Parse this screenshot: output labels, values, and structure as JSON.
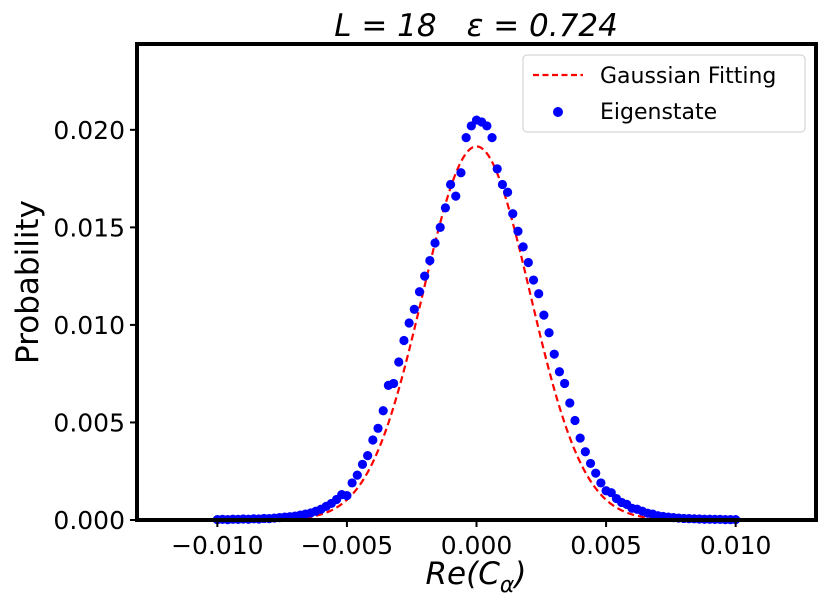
{
  "chart_data": {
    "type": "scatter",
    "title_parts": [
      "L = 18",
      "ε = 0.724"
    ],
    "xlabel_main": "Re(C",
    "xlabel_sub": "α",
    "xlabel_close": ")",
    "ylabel": "Probability",
    "xlim": [
      -0.0131,
      0.0131
    ],
    "ylim": [
      0,
      0.0244
    ],
    "x_ticks": [
      -0.01,
      -0.005,
      0.0,
      0.005,
      0.01
    ],
    "x_tick_labels": [
      "−0.010",
      "−0.005",
      "0.000",
      "0.005",
      "0.010"
    ],
    "y_ticks": [
      0.0,
      0.005,
      0.01,
      0.015,
      0.02
    ],
    "y_tick_labels": [
      "0.000",
      "0.005",
      "0.010",
      "0.015",
      "0.020"
    ],
    "legend": {
      "position": "top-right",
      "entries": [
        {
          "label": "Gaussian Fitting",
          "style": "dashed-line"
        },
        {
          "label": "Eigenstate",
          "style": "marker"
        }
      ]
    },
    "series": [
      {
        "name": "Gaussian Fitting",
        "kind": "line",
        "color": "#ff0000",
        "amplitude": 0.01915,
        "mean": 0.0,
        "sigma": 0.00207,
        "x_range": [
          -0.01,
          0.01
        ]
      },
      {
        "name": "Eigenstate",
        "kind": "scatter",
        "color": "#0000ff",
        "points": [
          [
            -0.01,
            2e-05
          ],
          [
            -0.0098,
            3e-05
          ],
          [
            -0.0096,
            2e-05
          ],
          [
            -0.0094,
            4e-05
          ],
          [
            -0.0092,
            3e-05
          ],
          [
            -0.009,
            5e-05
          ],
          [
            -0.0088,
            4e-05
          ],
          [
            -0.0086,
            6e-05
          ],
          [
            -0.0084,
            5e-05
          ],
          [
            -0.0082,
            8e-05
          ],
          [
            -0.008,
            7e-05
          ],
          [
            -0.0078,
            0.0001
          ],
          [
            -0.0076,
            0.00012
          ],
          [
            -0.0074,
            0.00015
          ],
          [
            -0.0072,
            0.00017
          ],
          [
            -0.007,
            0.0002
          ],
          [
            -0.0068,
            0.00025
          ],
          [
            -0.0066,
            0.0003
          ],
          [
            -0.0064,
            0.00036
          ],
          [
            -0.0062,
            0.00045
          ],
          [
            -0.006,
            0.00055
          ],
          [
            -0.0058,
            0.0007
          ],
          [
            -0.0056,
            0.00085
          ],
          [
            -0.0054,
            0.00105
          ],
          [
            -0.0052,
            0.0013
          ],
          [
            -0.005,
            0.00125
          ],
          [
            -0.0048,
            0.0019
          ],
          [
            -0.0046,
            0.0023
          ],
          [
            -0.0044,
            0.00285
          ],
          [
            -0.0042,
            0.0033
          ],
          [
            -0.004,
            0.0041
          ],
          [
            -0.0038,
            0.0047
          ],
          [
            -0.0036,
            0.0056
          ],
          [
            -0.0034,
            0.0069
          ],
          [
            -0.0032,
            0.007
          ],
          [
            -0.003,
            0.0081
          ],
          [
            -0.0028,
            0.0092
          ],
          [
            -0.0026,
            0.0101
          ],
          [
            -0.0024,
            0.0108
          ],
          [
            -0.0022,
            0.0117
          ],
          [
            -0.002,
            0.0125
          ],
          [
            -0.0018,
            0.0133
          ],
          [
            -0.0016,
            0.0142
          ],
          [
            -0.0014,
            0.015
          ],
          [
            -0.0012,
            0.016
          ],
          [
            -0.001,
            0.0172
          ],
          [
            -0.0008,
            0.0166
          ],
          [
            -0.0006,
            0.0178
          ],
          [
            -0.0004,
            0.0196
          ],
          [
            -0.0002,
            0.0202
          ],
          [
            0.0,
            0.0205
          ],
          [
            0.0002,
            0.0204
          ],
          [
            0.0004,
            0.0202
          ],
          [
            0.0006,
            0.0196
          ],
          [
            0.0008,
            0.018
          ],
          [
            0.001,
            0.0172
          ],
          [
            0.0012,
            0.0168
          ],
          [
            0.0014,
            0.0157
          ],
          [
            0.0016,
            0.0148
          ],
          [
            0.0018,
            0.014
          ],
          [
            0.002,
            0.0132
          ],
          [
            0.0022,
            0.0123
          ],
          [
            0.0024,
            0.0116
          ],
          [
            0.0026,
            0.0105
          ],
          [
            0.0028,
            0.0096
          ],
          [
            0.003,
            0.0085
          ],
          [
            0.0032,
            0.0076
          ],
          [
            0.0034,
            0.007
          ],
          [
            0.0036,
            0.006
          ],
          [
            0.0038,
            0.0051
          ],
          [
            0.004,
            0.0042
          ],
          [
            0.0042,
            0.0035
          ],
          [
            0.0044,
            0.0029
          ],
          [
            0.0046,
            0.0024
          ],
          [
            0.0048,
            0.0019
          ],
          [
            0.005,
            0.0015
          ],
          [
            0.0052,
            0.0014
          ],
          [
            0.0054,
            0.0011
          ],
          [
            0.0056,
            0.0009
          ],
          [
            0.0058,
            0.0008
          ],
          [
            0.006,
            0.0006
          ],
          [
            0.0062,
            0.00055
          ],
          [
            0.0064,
            0.00045
          ],
          [
            0.0066,
            0.00035
          ],
          [
            0.0068,
            0.0003
          ],
          [
            0.007,
            0.00022
          ],
          [
            0.0072,
            0.00018
          ],
          [
            0.0074,
            0.00015
          ],
          [
            0.0076,
            0.00012
          ],
          [
            0.0078,
            0.0001
          ],
          [
            0.008,
            8e-05
          ],
          [
            0.0082,
            7e-05
          ],
          [
            0.0084,
            6e-05
          ],
          [
            0.0086,
            5e-05
          ],
          [
            0.0088,
            4e-05
          ],
          [
            0.009,
            4e-05
          ],
          [
            0.0092,
            3e-05
          ],
          [
            0.0094,
            3e-05
          ],
          [
            0.0096,
            2e-05
          ],
          [
            0.0098,
            2e-05
          ],
          [
            0.01,
            2e-05
          ]
        ]
      }
    ]
  }
}
